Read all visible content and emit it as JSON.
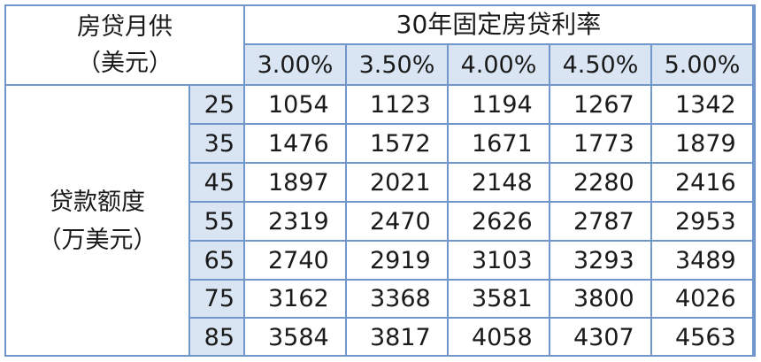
{
  "corner": {
    "line1": "房贷月供",
    "line2": "（美元）"
  },
  "col_group_header": "30年固定房贷利率",
  "row_group_header": {
    "line1": "贷款额度",
    "line2": "（万美元）"
  },
  "rates": [
    "3.00%",
    "3.50%",
    "4.00%",
    "4.50%",
    "5.00%"
  ],
  "rows": [
    {
      "amount": "25",
      "values": [
        "1054",
        "1123",
        "1194",
        "1267",
        "1342"
      ]
    },
    {
      "amount": "35",
      "values": [
        "1476",
        "1572",
        "1671",
        "1773",
        "1879"
      ]
    },
    {
      "amount": "45",
      "values": [
        "1897",
        "2021",
        "2148",
        "2280",
        "2416"
      ]
    },
    {
      "amount": "55",
      "values": [
        "2319",
        "2470",
        "2626",
        "2787",
        "2953"
      ]
    },
    {
      "amount": "65",
      "values": [
        "2740",
        "2919",
        "3103",
        "3293",
        "3489"
      ]
    },
    {
      "amount": "75",
      "values": [
        "3162",
        "3368",
        "3581",
        "3800",
        "4026"
      ]
    },
    {
      "amount": "85",
      "values": [
        "3584",
        "3817",
        "4058",
        "4307",
        "4563"
      ]
    }
  ],
  "colors": {
    "border": "#7096cc",
    "header_fill": "#d9e5f3",
    "body_fill": "#ffffff"
  }
}
